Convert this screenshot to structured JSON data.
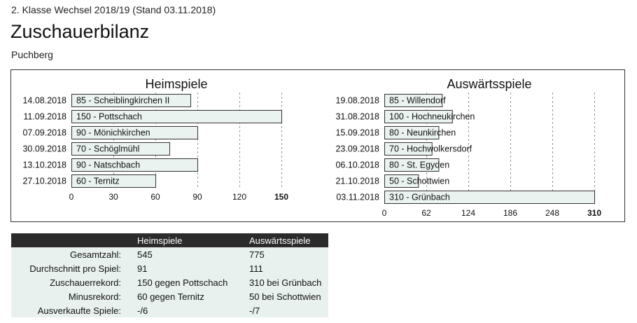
{
  "header": {
    "subtitle": "2. Klasse Wechsel 2018/19 (Stand 03.11.2018)",
    "title": "Zuschauerbilanz",
    "club": "Puchberg"
  },
  "chart_data": [
    {
      "type": "bar",
      "orientation": "horizontal",
      "title": "Heimspiele",
      "categories": [
        "14.08.2018",
        "11.09.2018",
        "07.09.2018",
        "30.09.2018",
        "13.10.2018",
        "27.10.2018"
      ],
      "values": [
        85,
        150,
        90,
        70,
        90,
        60
      ],
      "bar_labels": [
        "85 - Scheiblingkirchen II",
        "150 - Pottschach",
        "90 - Mönichkirchen",
        "70 - Schöglmühl",
        "90 - Natschbach",
        "60 - Ternitz"
      ],
      "xlim": [
        0,
        150
      ],
      "xticks": [
        0,
        30,
        60,
        90,
        120,
        150
      ],
      "grid": true
    },
    {
      "type": "bar",
      "orientation": "horizontal",
      "title": "Auswärtsspiele",
      "categories": [
        "19.08.2018",
        "31.08.2018",
        "15.09.2018",
        "23.09.2018",
        "06.10.2018",
        "21.10.2018",
        "03.11.2018"
      ],
      "values": [
        85,
        100,
        80,
        70,
        80,
        50,
        310
      ],
      "bar_labels": [
        "85 - Willendorf",
        "100 - Hochneukirchen",
        "80 - Neunkirchen",
        "70 - Hochwolkersdorf",
        "80 - St. Egyden",
        "50 - Schottwien",
        "310 - Grünbach"
      ],
      "xlim": [
        0,
        310
      ],
      "xticks": [
        0,
        62,
        124,
        186,
        248,
        310
      ],
      "grid": true
    }
  ],
  "colors": {
    "bar_fill": "#eaf3ef",
    "bar_stroke": "#333333",
    "table_header": "#2b2b2b",
    "table_row": "#e8f1ee"
  },
  "stats": {
    "headers": [
      "",
      "Heimspiele",
      "Auswärtsspiele"
    ],
    "rows": [
      {
        "label": "Gesamtzahl:",
        "home": "545",
        "away": "775"
      },
      {
        "label": "Durchschnitt pro Spiel:",
        "home": "91",
        "away": "111"
      },
      {
        "label": "Zuschauerrekord:",
        "home": "150 gegen Pottschach",
        "away": "310 bei Grünbach"
      },
      {
        "label": "Minusrekord:",
        "home": "60 gegen Ternitz",
        "away": "50 bei Schottwien"
      },
      {
        "label": "Ausverkaufte Spiele:",
        "home": "-/6",
        "away": "-/7"
      }
    ]
  }
}
